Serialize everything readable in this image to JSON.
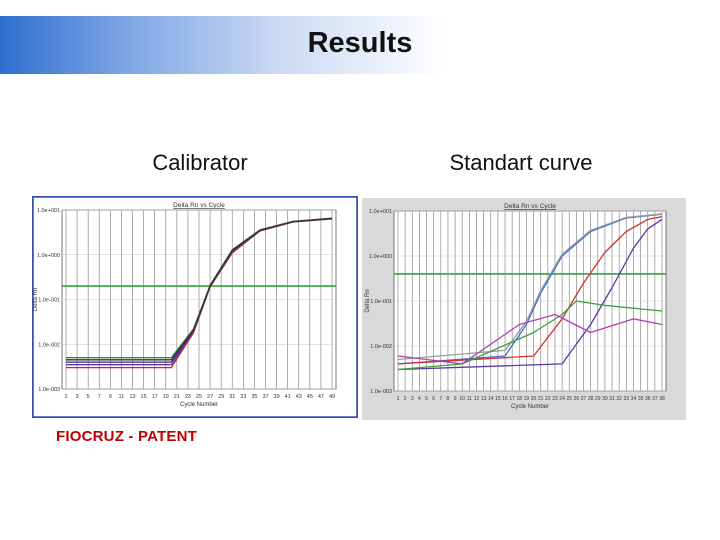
{
  "slide": {
    "title": "Results",
    "left_caption": "Calibrator",
    "right_caption": "Standart curve",
    "footer": "FIOCRUZ - PATENT"
  },
  "colors": {
    "border_left": "#3550b0",
    "threshold": "#3aa03a",
    "footer": "#c00000"
  },
  "chart_data": [
    {
      "type": "line",
      "title": "Delta Rn vs Cycle",
      "xlabel": "Cycle Number",
      "ylabel": "Delta Rn",
      "log_y": true,
      "ylim": [
        0.001,
        10
      ],
      "y_ticks": [
        "1.0e+001",
        "1.0e+000",
        "1.0e-001",
        "1.0e-002",
        "1.0e-003"
      ],
      "x_ticks": [
        "1",
        "3",
        "5",
        "7",
        "9",
        "11",
        "13",
        "15",
        "17",
        "19",
        "21",
        "23",
        "25",
        "27",
        "29",
        "31",
        "33",
        "35",
        "37",
        "39",
        "41",
        "43",
        "45",
        "47",
        "49"
      ],
      "threshold": 0.2,
      "series": [
        {
          "color": "#2a2aa0",
          "values": [
            {
              "x": 1,
              "y": 0.004
            },
            {
              "x": 20,
              "y": 0.004
            },
            {
              "x": 24,
              "y": 0.02
            },
            {
              "x": 27,
              "y": 0.2
            },
            {
              "x": 31,
              "y": 1.2
            },
            {
              "x": 36,
              "y": 3.5
            },
            {
              "x": 42,
              "y": 5.5
            },
            {
              "x": 49,
              "y": 6.5
            }
          ]
        },
        {
          "color": "#b03030",
          "values": [
            {
              "x": 1,
              "y": 0.003
            },
            {
              "x": 20,
              "y": 0.003
            },
            {
              "x": 24,
              "y": 0.018
            },
            {
              "x": 27,
              "y": 0.19
            },
            {
              "x": 31,
              "y": 1.1
            },
            {
              "x": 36,
              "y": 3.4
            },
            {
              "x": 42,
              "y": 5.4
            },
            {
              "x": 49,
              "y": 6.3
            }
          ]
        },
        {
          "color": "#2f8f2f",
          "values": [
            {
              "x": 1,
              "y": 0.005
            },
            {
              "x": 20,
              "y": 0.005
            },
            {
              "x": 24,
              "y": 0.022
            },
            {
              "x": 27,
              "y": 0.21
            },
            {
              "x": 31,
              "y": 1.3
            },
            {
              "x": 36,
              "y": 3.6
            },
            {
              "x": 42,
              "y": 5.6
            },
            {
              "x": 49,
              "y": 6.6
            }
          ]
        },
        {
          "color": "#7a2a9a",
          "values": [
            {
              "x": 1,
              "y": 0.0035
            },
            {
              "x": 20,
              "y": 0.0035
            },
            {
              "x": 24,
              "y": 0.019
            },
            {
              "x": 27,
              "y": 0.2
            },
            {
              "x": 31,
              "y": 1.15
            },
            {
              "x": 36,
              "y": 3.45
            },
            {
              "x": 42,
              "y": 5.45
            },
            {
              "x": 49,
              "y": 6.4
            }
          ]
        },
        {
          "color": "#333333",
          "values": [
            {
              "x": 1,
              "y": 0.0045
            },
            {
              "x": 20,
              "y": 0.0045
            },
            {
              "x": 24,
              "y": 0.021
            },
            {
              "x": 27,
              "y": 0.2
            },
            {
              "x": 31,
              "y": 1.25
            },
            {
              "x": 36,
              "y": 3.55
            },
            {
              "x": 42,
              "y": 5.5
            },
            {
              "x": 49,
              "y": 6.5
            }
          ]
        }
      ]
    },
    {
      "type": "line",
      "title": "Delta Rn vs Cycle",
      "xlabel": "Cycle Number",
      "ylabel": "Delta Rn",
      "log_y": true,
      "ylim": [
        0.001,
        10
      ],
      "y_ticks": [
        "1.0e+001",
        "1.0e+000",
        "1.0e-001",
        "1.0e-002",
        "1.0e-003"
      ],
      "x_ticks": [
        "1",
        "2",
        "3",
        "4",
        "5",
        "6",
        "7",
        "8",
        "9",
        "10",
        "11",
        "12",
        "13",
        "14",
        "15",
        "16",
        "17",
        "18",
        "19",
        "20",
        "21",
        "22",
        "23",
        "24",
        "25",
        "26",
        "27",
        "28",
        "29",
        "30",
        "31",
        "32",
        "33",
        "34",
        "35",
        "36",
        "37",
        "38"
      ],
      "threshold": 0.4,
      "series": [
        {
          "color": "#3a6fd8",
          "values": [
            {
              "x": 1,
              "y": 0.004
            },
            {
              "x": 16,
              "y": 0.006
            },
            {
              "x": 19,
              "y": 0.03
            },
            {
              "x": 21,
              "y": 0.15
            },
            {
              "x": 24,
              "y": 1.0
            },
            {
              "x": 28,
              "y": 3.5
            },
            {
              "x": 33,
              "y": 7.0
            },
            {
              "x": 38,
              "y": 8.5
            }
          ]
        },
        {
          "color": "#9a9a9a",
          "values": [
            {
              "x": 1,
              "y": 0.005
            },
            {
              "x": 16,
              "y": 0.008
            },
            {
              "x": 19,
              "y": 0.035
            },
            {
              "x": 21,
              "y": 0.17
            },
            {
              "x": 24,
              "y": 1.1
            },
            {
              "x": 28,
              "y": 3.7
            },
            {
              "x": 33,
              "y": 7.2
            },
            {
              "x": 38,
              "y": 8.6
            }
          ]
        },
        {
          "color": "#d03030",
          "values": [
            {
              "x": 1,
              "y": 0.004
            },
            {
              "x": 20,
              "y": 0.006
            },
            {
              "x": 24,
              "y": 0.04
            },
            {
              "x": 27,
              "y": 0.25
            },
            {
              "x": 30,
              "y": 1.2
            },
            {
              "x": 33,
              "y": 3.5
            },
            {
              "x": 36,
              "y": 6.5
            },
            {
              "x": 38,
              "y": 7.5
            }
          ]
        },
        {
          "color": "#5a3aa0",
          "values": [
            {
              "x": 1,
              "y": 0.003
            },
            {
              "x": 24,
              "y": 0.004
            },
            {
              "x": 28,
              "y": 0.03
            },
            {
              "x": 31,
              "y": 0.2
            },
            {
              "x": 34,
              "y": 1.5
            },
            {
              "x": 36,
              "y": 4.0
            },
            {
              "x": 38,
              "y": 6.5
            }
          ]
        },
        {
          "color": "#3aa03a",
          "values": [
            {
              "x": 1,
              "y": 0.003
            },
            {
              "x": 10,
              "y": 0.004
            },
            {
              "x": 20,
              "y": 0.02
            },
            {
              "x": 24,
              "y": 0.05
            },
            {
              "x": 26,
              "y": 0.1
            },
            {
              "x": 30,
              "y": 0.08
            },
            {
              "x": 38,
              "y": 0.06
            }
          ]
        },
        {
          "color": "#b040b0",
          "values": [
            {
              "x": 1,
              "y": 0.006
            },
            {
              "x": 10,
              "y": 0.004
            },
            {
              "x": 18,
              "y": 0.03
            },
            {
              "x": 23,
              "y": 0.05
            },
            {
              "x": 28,
              "y": 0.02
            },
            {
              "x": 34,
              "y": 0.04
            },
            {
              "x": 38,
              "y": 0.03
            }
          ]
        }
      ]
    }
  ]
}
